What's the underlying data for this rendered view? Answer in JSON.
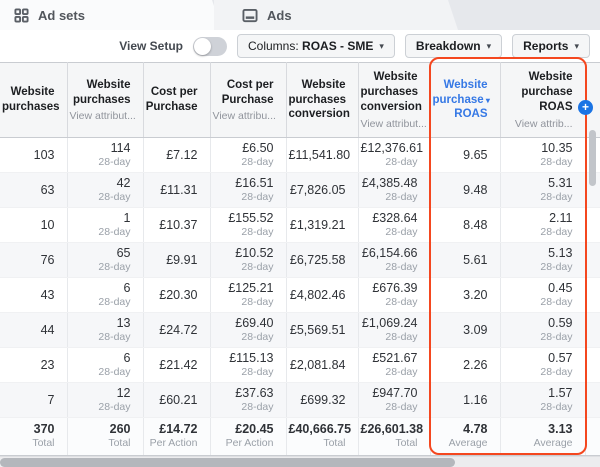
{
  "tabs": [
    {
      "label": "Ad sets"
    },
    {
      "label": "Ads"
    }
  ],
  "toolbar": {
    "view_setup_label": "View Setup",
    "view_setup_toggle_state": "off",
    "columns_prefix": "Columns:",
    "columns_value": "ROAS - SME",
    "breakdown_label": "Breakdown",
    "reports_label": "Reports"
  },
  "table": {
    "columns": [
      {
        "id": "website-purchases",
        "lines": [
          "Website",
          "purchases"
        ],
        "sub": "",
        "sorted": false
      },
      {
        "id": "website-purchases-attr",
        "lines": [
          "Website",
          "purchases"
        ],
        "sub": "View attribut...",
        "sorted": false
      },
      {
        "id": "cost-per-purchase",
        "lines": [
          "Cost per",
          "Purchase"
        ],
        "sub": "",
        "sorted": false
      },
      {
        "id": "cost-per-purchase-attr",
        "lines": [
          "Cost per",
          "Purchase"
        ],
        "sub": "View attribu...",
        "sorted": false
      },
      {
        "id": "website-purchases-conversion",
        "lines": [
          "Website",
          "purchases",
          "conversion"
        ],
        "sub": "",
        "sorted": false
      },
      {
        "id": "website-purchases-conversion-attr",
        "lines": [
          "Website",
          "purchases",
          "conversion"
        ],
        "sub": "View attribut...",
        "sorted": false
      },
      {
        "id": "website-purchase-roas",
        "lines": [
          "Website",
          "purchase",
          "ROAS"
        ],
        "sub": "",
        "sorted": true
      },
      {
        "id": "website-purchase-roas-attr",
        "lines": [
          "Website",
          "purchase",
          "ROAS"
        ],
        "sub": "View attrib...",
        "sorted": false
      }
    ],
    "attribution_window": "28-day",
    "attribution_columns": [
      1,
      3,
      5,
      7
    ],
    "rows": [
      {
        "values": [
          "103",
          "114",
          "£7.12",
          "£6.50",
          "£11,541.80",
          "£12,376.61",
          "9.65",
          "10.35"
        ]
      },
      {
        "values": [
          "63",
          "42",
          "£11.31",
          "£16.51",
          "£7,826.05",
          "£4,385.48",
          "9.48",
          "5.31"
        ]
      },
      {
        "values": [
          "10",
          "1",
          "£10.37",
          "£155.52",
          "£1,319.21",
          "£328.64",
          "8.48",
          "2.11"
        ]
      },
      {
        "values": [
          "76",
          "65",
          "£9.91",
          "£10.52",
          "£6,725.58",
          "£6,154.66",
          "5.61",
          "5.13"
        ]
      },
      {
        "values": [
          "43",
          "6",
          "£20.30",
          "£125.21",
          "£4,802.46",
          "£676.39",
          "3.20",
          "0.45"
        ]
      },
      {
        "values": [
          "44",
          "13",
          "£24.72",
          "£69.40",
          "£5,569.51",
          "£1,069.24",
          "3.09",
          "0.59"
        ]
      },
      {
        "values": [
          "23",
          "6",
          "£21.42",
          "£115.13",
          "£2,081.84",
          "£521.67",
          "2.26",
          "0.57"
        ]
      },
      {
        "values": [
          "7",
          "12",
          "£60.21",
          "£37.63",
          "£699.32",
          "£947.70",
          "1.16",
          "1.57"
        ]
      }
    ],
    "totals": {
      "values": [
        "370",
        "260",
        "£14.72",
        "£20.45",
        "£40,666.75",
        "£26,601.38",
        "4.78",
        "3.13"
      ],
      "labels": [
        "Total",
        "Total",
        "Per Action",
        "Per Action",
        "Total",
        "Total",
        "Average",
        "Average"
      ]
    }
  },
  "colors": {
    "sorted_column_blue": "#3578e5",
    "highlight_red": "#f4471f",
    "add_button_blue": "#1b74e4",
    "header_bg": "#f5f6f7"
  }
}
